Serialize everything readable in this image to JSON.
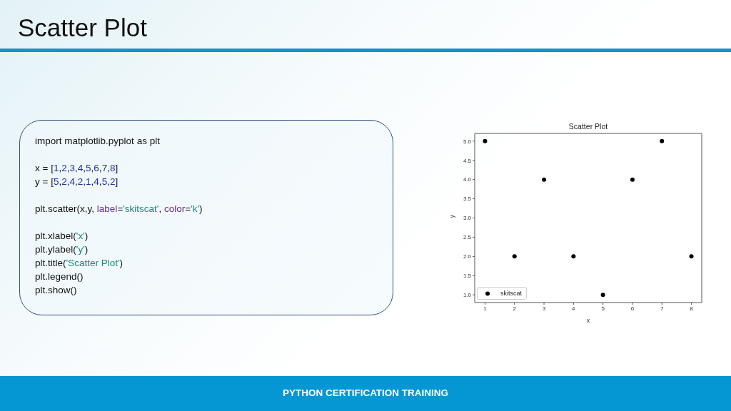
{
  "chart_data": {
    "type": "scatter",
    "title": "Scatter Plot",
    "xlabel": "x",
    "ylabel": "y",
    "annotations": [
      "Scatter Plot",
      "import matplotlib.pyplot as plt",
      "x = [1,2,3,4,5,6,7,8]",
      "y = [5,2,4,2,1,4,5,2]",
      "plt.scatter(x,y, label='skitscat', color='k')",
      "plt.xlabel('x')",
      "plt.ylabel('y')",
      "plt.title('Scatter Plot')",
      "plt.legend()",
      "plt.show()",
      "PYTHON CERTIFICATION TRAINING"
    ],
    "x": [
      1,
      2,
      3,
      4,
      5,
      6,
      7,
      8
    ],
    "series": [
      {
        "name": "skitscat",
        "color": "#000000",
        "values": [
          5,
          2,
          4,
          2,
          1,
          4,
          5,
          2
        ]
      }
    ],
    "xlim": [
      0.65,
      8.35
    ],
    "ylim": [
      0.8,
      5.2
    ],
    "xticks": [
      1,
      2,
      3,
      4,
      5,
      6,
      7,
      8
    ],
    "yticks": [
      {
        "value": 1,
        "label": "1.0"
      },
      {
        "value": 1.5,
        "label": "1.5"
      },
      {
        "value": 2,
        "label": "2.0"
      },
      {
        "value": 2.5,
        "label": "2.5"
      },
      {
        "value": 3,
        "label": "3.0"
      },
      {
        "value": 3.5,
        "label": "3.5"
      },
      {
        "value": 4,
        "label": "4.0"
      },
      {
        "value": 4.5,
        "label": "4.5"
      },
      {
        "value": 5,
        "label": "5.0"
      }
    ],
    "legend": "bottom left",
    "marker": "circle"
  }
}
